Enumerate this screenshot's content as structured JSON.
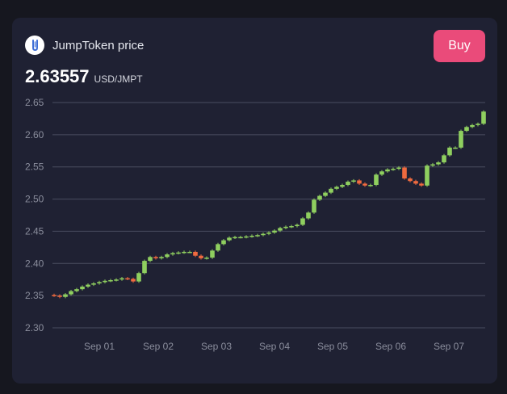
{
  "widget": {
    "title": "JumpToken price",
    "price": "2.63557",
    "unit": "USD/JMPT",
    "buy_label": "Buy",
    "logo_icon": "jumptoken-logo-icon"
  },
  "colors": {
    "up": "#8fcf5f",
    "down": "#f06a3f",
    "accent": "#ea4b7a"
  },
  "chart_data": {
    "type": "candlestick",
    "yticks": [
      2.3,
      2.35,
      2.4,
      2.45,
      2.5,
      2.55,
      2.6,
      2.65
    ],
    "ylim": [
      2.29,
      2.65
    ],
    "xticks": [
      "Sep 01",
      "Sep 02",
      "Sep 03",
      "Sep 04",
      "Sep 05",
      "Sep 06",
      "Sep 07"
    ],
    "candles_close": [
      2.35,
      2.348,
      2.352,
      2.357,
      2.36,
      2.364,
      2.367,
      2.369,
      2.371,
      2.373,
      2.374,
      2.375,
      2.377,
      2.376,
      2.372,
      2.385,
      2.404,
      2.41,
      2.408,
      2.41,
      2.414,
      2.416,
      2.417,
      2.418,
      2.418,
      2.412,
      2.408,
      2.409,
      2.42,
      2.43,
      2.436,
      2.44,
      2.441,
      2.441,
      2.442,
      2.443,
      2.444,
      2.446,
      2.448,
      2.451,
      2.455,
      2.457,
      2.458,
      2.46,
      2.47,
      2.479,
      2.499,
      2.505,
      2.51,
      2.516,
      2.519,
      2.522,
      2.527,
      2.529,
      2.524,
      2.521,
      2.522,
      2.538,
      2.543,
      2.546,
      2.547,
      2.549,
      2.532,
      2.528,
      2.524,
      2.521,
      2.552,
      2.554,
      2.557,
      2.568,
      2.58,
      2.58,
      2.606,
      2.612,
      2.615,
      2.617,
      2.636
    ]
  }
}
